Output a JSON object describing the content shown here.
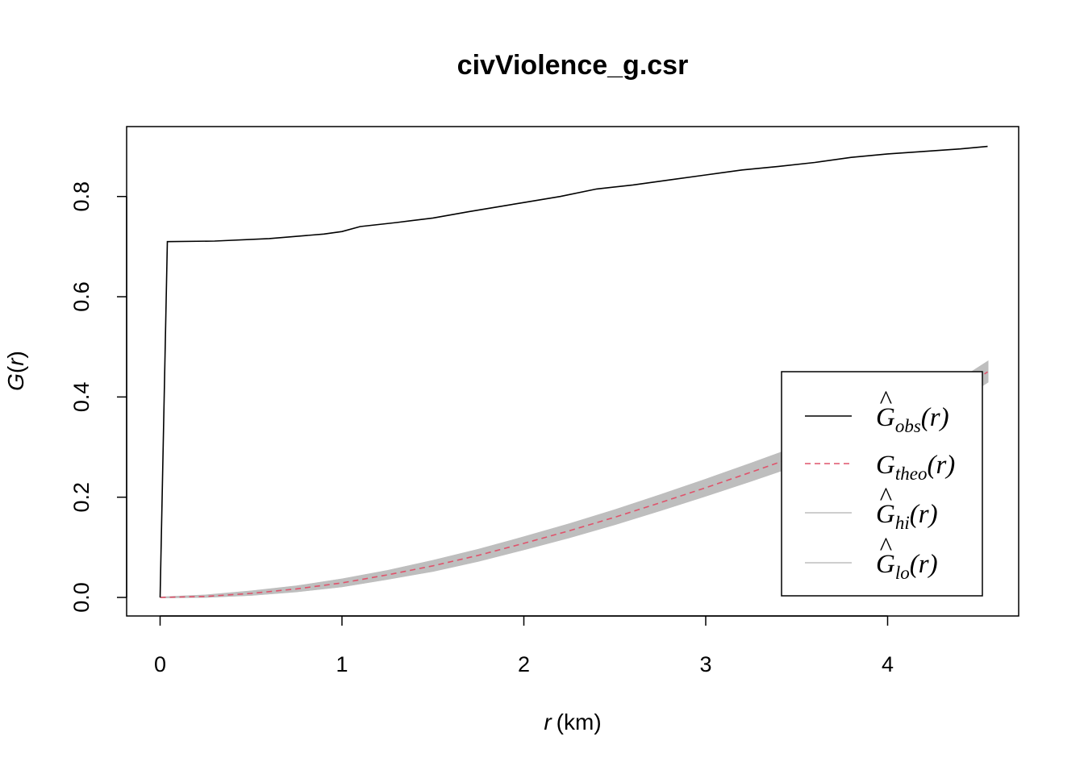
{
  "chart_data": {
    "type": "line",
    "title": "civViolence_g.csr",
    "xlabel": {
      "var": "r",
      "unit": "(km)"
    },
    "ylabel": {
      "fn": "G",
      "var": "r"
    },
    "xlim": [
      0,
      4.55
    ],
    "ylim": [
      0,
      0.9
    ],
    "xticks": [
      "0",
      "1",
      "2",
      "3",
      "4"
    ],
    "yticks": [
      "0.0",
      "0.2",
      "0.4",
      "0.6",
      "0.8"
    ],
    "grid": false,
    "legend_position": "bottom-right",
    "colors": {
      "obs": "#000000",
      "theo": "#DF536B",
      "envelope": "#BEBEBE"
    },
    "series": [
      {
        "key": "obs",
        "legend": {
          "symbol": "G",
          "hat": "^",
          "sub": "obs",
          "arg": "(r)"
        },
        "style": "solid",
        "x": [
          0,
          0.04,
          0.3,
          0.6,
          0.9,
          1.0,
          1.1,
          1.3,
          1.5,
          1.7,
          1.9,
          2.0,
          2.2,
          2.4,
          2.6,
          2.8,
          3.0,
          3.2,
          3.4,
          3.6,
          3.8,
          4.0,
          4.2,
          4.4,
          4.55
        ],
        "y": [
          0,
          0.71,
          0.711,
          0.716,
          0.725,
          0.73,
          0.74,
          0.748,
          0.757,
          0.77,
          0.782,
          0.788,
          0.8,
          0.815,
          0.823,
          0.833,
          0.843,
          0.853,
          0.86,
          0.868,
          0.878,
          0.885,
          0.89,
          0.895,
          0.9
        ]
      },
      {
        "key": "theo",
        "legend": {
          "symbol": "G",
          "hat": "",
          "sub": "theo",
          "arg": "(r)"
        },
        "style": "dashed",
        "x": [
          0,
          0.25,
          0.5,
          0.75,
          1.0,
          1.25,
          1.5,
          1.75,
          2.0,
          2.25,
          2.5,
          2.75,
          3.0,
          3.25,
          3.5,
          3.75,
          4.0,
          4.25,
          4.55
        ],
        "y": [
          0,
          0.002,
          0.008,
          0.017,
          0.029,
          0.045,
          0.063,
          0.084,
          0.108,
          0.133,
          0.16,
          0.189,
          0.219,
          0.25,
          0.282,
          0.314,
          0.347,
          0.38,
          0.45
        ]
      },
      {
        "key": "hi",
        "legend": {
          "symbol": "G",
          "hat": "^",
          "sub": "hi",
          "arg": "(r)"
        },
        "style": "solid",
        "x": [
          0,
          0.25,
          0.5,
          0.75,
          1.0,
          1.25,
          1.5,
          1.75,
          2.0,
          2.25,
          2.5,
          2.75,
          3.0,
          3.25,
          3.5,
          3.75,
          4.0,
          4.25,
          4.55
        ],
        "y": [
          0,
          0.004,
          0.012,
          0.022,
          0.036,
          0.053,
          0.073,
          0.095,
          0.12,
          0.146,
          0.174,
          0.204,
          0.235,
          0.267,
          0.3,
          0.333,
          0.367,
          0.4,
          0.47
        ]
      },
      {
        "key": "lo",
        "legend": {
          "symbol": "G",
          "hat": "^",
          "sub": "lo",
          "arg": "(r)"
        },
        "style": "solid",
        "x": [
          0,
          0.25,
          0.5,
          0.75,
          1.0,
          1.25,
          1.5,
          1.75,
          2.0,
          2.25,
          2.5,
          2.75,
          3.0,
          3.25,
          3.5,
          3.75,
          4.0,
          4.25,
          4.55
        ],
        "y": [
          0,
          0.001,
          0.005,
          0.012,
          0.022,
          0.037,
          0.053,
          0.073,
          0.096,
          0.12,
          0.146,
          0.174,
          0.203,
          0.233,
          0.264,
          0.296,
          0.328,
          0.36,
          0.43
        ]
      }
    ]
  }
}
